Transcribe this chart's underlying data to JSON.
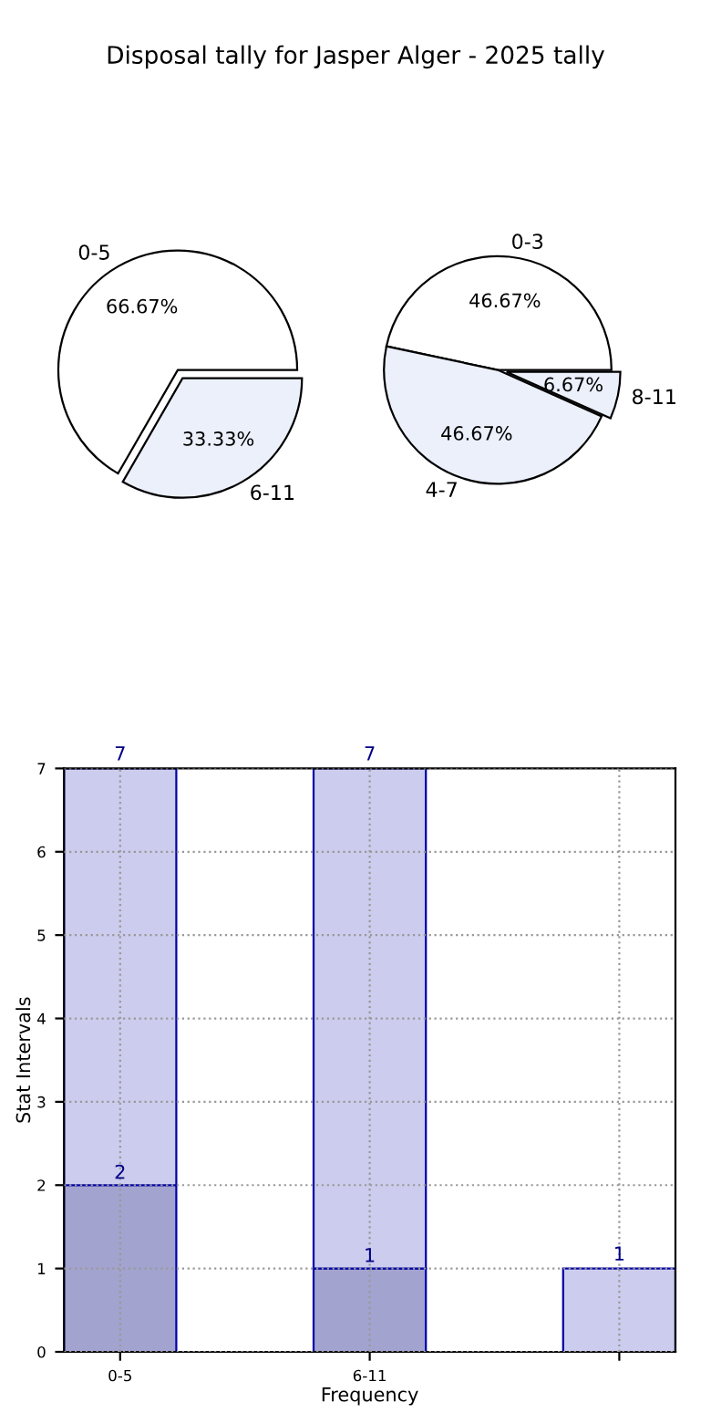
{
  "chart_data": [
    {
      "type": "pie",
      "title": "Disposal tally for Jasper Alger - 2025 tally",
      "categories": [
        "0-5",
        "6-11"
      ],
      "values": [
        66.67,
        33.33
      ],
      "colors": [
        "#ffffff",
        "#ebf0fb"
      ],
      "value_labels": [
        "66.67%",
        "33.33%"
      ]
    },
    {
      "type": "pie",
      "categories": [
        "0-3",
        "4-7",
        "8-11"
      ],
      "values": [
        46.67,
        46.67,
        6.67
      ],
      "colors": [
        "#ffffff",
        "#ebf0fb",
        "#ebf0fb"
      ],
      "value_labels": [
        "46.67%",
        "46.67%",
        "6.67%"
      ]
    },
    {
      "type": "bar",
      "xlabel": "Frequency",
      "ylabel": "Stat Intervals",
      "categories": [
        "0-5",
        "6-11",
        null
      ],
      "ylim": [
        0,
        7
      ],
      "yticks": [
        0,
        1,
        2,
        3,
        4,
        5,
        6,
        7
      ],
      "grid": true,
      "stacked": true,
      "totals": [
        "7",
        "7",
        "1"
      ],
      "series": [
        {
          "color": "#a3a3d0",
          "values": [
            2,
            1,
            null
          ],
          "value_labels": [
            "2",
            "1",
            null
          ]
        },
        {
          "color": "#ccccee",
          "values": [
            5,
            6,
            1
          ]
        }
      ]
    }
  ]
}
